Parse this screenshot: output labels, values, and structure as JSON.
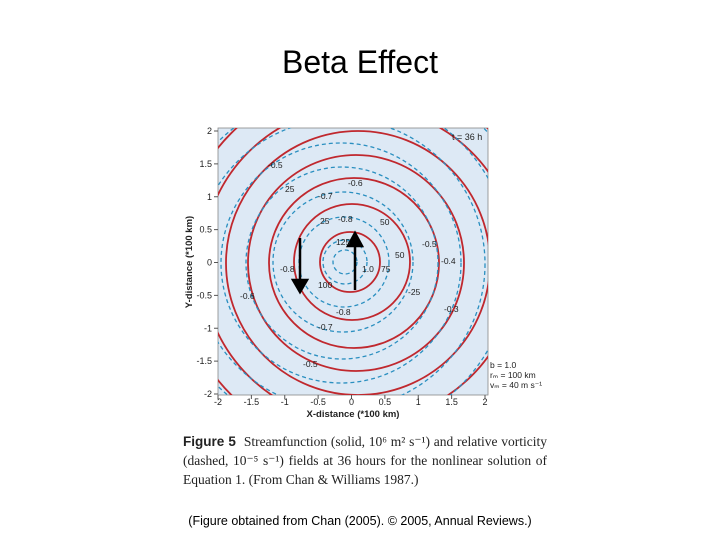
{
  "title": "Beta Effect",
  "figure": {
    "time_label": "t = 36 h",
    "x_axis_label": "X-distance (*100 km)",
    "y_axis_label": "Y-distance (*100 km)",
    "x_ticks": [
      "-2",
      "-1.5",
      "-1",
      "-0.5",
      "0",
      "0.5",
      "1",
      "1.5",
      "2"
    ],
    "y_ticks": [
      "2",
      "1.5",
      "1",
      "0.5",
      "0",
      "-0.5",
      "-1",
      "-1.5",
      "-2"
    ],
    "contour_labels": [
      "-0.5",
      "25",
      "-0.6",
      "-0.7",
      "25",
      "-0.8",
      "50",
      "125",
      "50",
      "-0.5",
      "-0.4",
      "-0.8",
      "100",
      "1.0",
      "75",
      "-25",
      "-0.3",
      "-0.8",
      "-0.7",
      "-0.6",
      "-0.5"
    ],
    "parameters": [
      "b = 1.0",
      "rₘ = 100 km",
      "vₘ = 40 m s⁻¹"
    ]
  },
  "caption": {
    "label": "Figure 5",
    "text": "Streamfunction (solid, 10⁶ m² s⁻¹) and relative vorticity (dashed, 10⁻⁵ s⁻¹) fields at 36 hours for the nonlinear solution of Equation 1. (From Chan & Williams 1987.)"
  },
  "credit": "(Figure obtained from Chan (2005). © 2005, Annual Reviews.)"
}
